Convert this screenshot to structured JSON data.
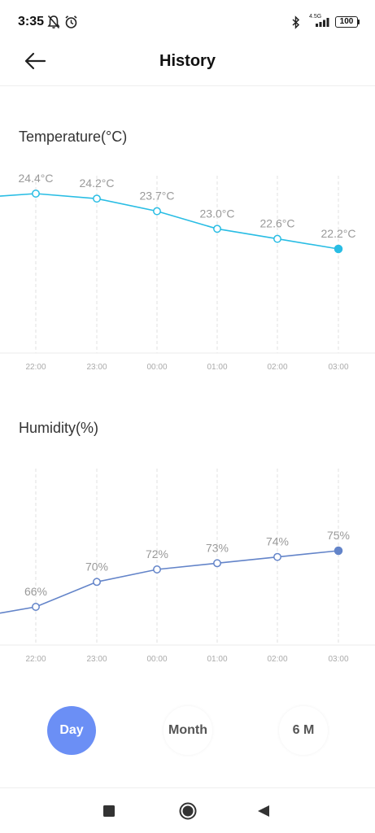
{
  "status_bar": {
    "time": "3:35",
    "network": "4.5G",
    "battery": "100",
    "icons": [
      "bell-muted-icon",
      "alarm-icon",
      "bluetooth-icon",
      "signal-icon",
      "battery-icon"
    ]
  },
  "header": {
    "title": "History",
    "back_icon": "arrow-left-icon"
  },
  "temperature": {
    "title": "Temperature(°C)"
  },
  "humidity": {
    "title": "Humidity(%)"
  },
  "range_tabs": [
    {
      "label": "Day",
      "active": true
    },
    {
      "label": "Month",
      "active": false
    },
    {
      "label": "6 M",
      "active": false
    }
  ],
  "nav_bar": {
    "icons": [
      "recents-square-icon",
      "home-circle-icon",
      "back-triangle-icon"
    ]
  },
  "colors": {
    "temperature_line": "#29bde4",
    "humidity_line": "#6384c9",
    "active_tab": "#6b8ff5",
    "tick_text": "#aaaaaa",
    "label_text": "#999999"
  },
  "chart_data": [
    {
      "type": "line",
      "categories": [
        "22:00",
        "23:00",
        "00:00",
        "01:00",
        "02:00",
        "03:00"
      ],
      "series": [
        {
          "values": [
            24.4,
            24.2,
            23.7,
            23.0,
            22.6,
            22.2
          ],
          "labels": [
            "24.4°C",
            "24.2°C",
            "23.7°C",
            "23.0°C",
            "22.6°C",
            "22.2°C"
          ]
        }
      ],
      "leading_value": 24.3,
      "grid": "vertical-dashed"
    },
    {
      "type": "line",
      "categories": [
        "22:00",
        "23:00",
        "00:00",
        "01:00",
        "02:00",
        "03:00"
      ],
      "series": [
        {
          "values": [
            66,
            70,
            72,
            73,
            74,
            75
          ],
          "labels": [
            "66%",
            "70%",
            "72%",
            "73%",
            "74%",
            "75%"
          ]
        }
      ],
      "leading_value": 65,
      "grid": "vertical-dashed"
    }
  ]
}
